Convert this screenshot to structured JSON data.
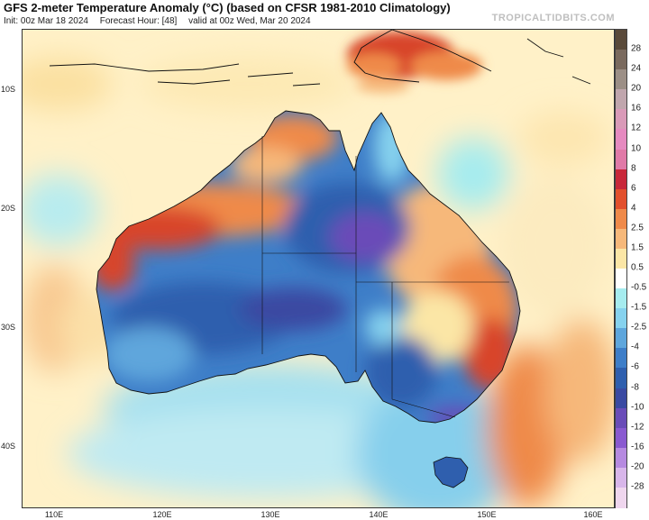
{
  "header": {
    "title": "GFS 2-meter Temperature Anomaly (°C) (based on CFSR 1981-2010 Climatology)",
    "init": "Init: 00z Mar 18 2024",
    "forecast_hour": "Forecast Hour: [48]",
    "valid": "valid at 00z Wed, Mar 20 2024",
    "brand": "TROPICALTIDBITS.COM"
  },
  "axes": {
    "lat_labels": [
      "10S",
      "20S",
      "30S",
      "40S"
    ],
    "lon_labels": [
      "110E",
      "120E",
      "130E",
      "140E",
      "150E",
      "160E"
    ]
  },
  "colorbar": {
    "labels": [
      "28",
      "24",
      "20",
      "16",
      "12",
      "10",
      "8",
      "6",
      "4",
      "2.5",
      "1.5",
      "0.5",
      "-0.5",
      "-1.5",
      "-2.5",
      "-4",
      "-6",
      "-8",
      "-10",
      "-12",
      "-16",
      "-20",
      "-28"
    ],
    "colors": [
      "#5a4a3a",
      "#7a6a5e",
      "#9c8f86",
      "#c0a6ad",
      "#d99ab8",
      "#e58ac0",
      "#e07aa8",
      "#c8283a",
      "#e2502d",
      "#ef8a4a",
      "#f6b87a",
      "#fbe6a6",
      "#ffffff",
      "#a6ecef",
      "#86d2ee",
      "#5ea6dc",
      "#3e7ec8",
      "#2f5fae",
      "#3a4aa2",
      "#6a4cb8",
      "#8a5ad0",
      "#b68ae0",
      "#d8b6ea",
      "#efd6ee"
    ]
  },
  "map": {
    "colors": {
      "ocean_neutral": "#fff4d2",
      "warm_light": "#fbe6a6",
      "warm_mid": "#f6b87a",
      "warm_strong": "#ef8a4a",
      "warm_hot": "#d8452c",
      "cool_light": "#a6ecef",
      "cool_mid": "#86d2ee",
      "cool_blue": "#5ea6dc",
      "cool_deep": "#2f5fae",
      "cool_purple": "#6a4cb8",
      "coast": "#111111"
    }
  }
}
